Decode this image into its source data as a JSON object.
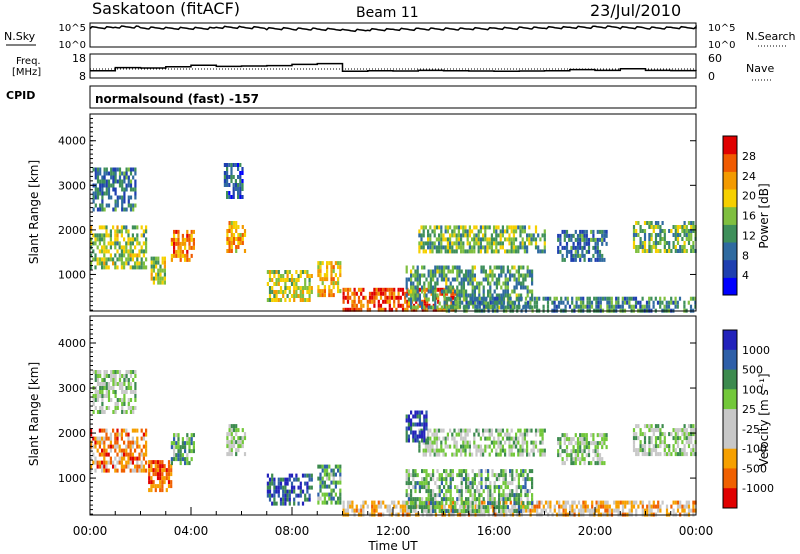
{
  "header": {
    "station": "Saskatoon (fitACF)",
    "beam": "Beam 11",
    "date": "23/Jul/2010"
  },
  "noise_panel": {
    "left_label": "N.Sky",
    "left_ticks": [
      "10^5",
      "10^0"
    ],
    "right_ticks": [
      "10^5",
      "10^0"
    ],
    "right_label": "N.Search"
  },
  "freq_panel": {
    "left_label_line1": "Freq.",
    "left_label_line2": "[MHz]",
    "left_ticks": [
      "18",
      "8"
    ],
    "right_ticks": [
      "60",
      "0"
    ],
    "right_label": "Nave"
  },
  "cpid": {
    "label": "CPID",
    "text": "normalsound (fast) -157"
  },
  "chart_data": [
    {
      "type": "line",
      "id": "noise",
      "series": [
        {
          "x": [
            0,
            1,
            2,
            3,
            4,
            5,
            6,
            7,
            8,
            9,
            10,
            11,
            12,
            13,
            14,
            15,
            16,
            17,
            18,
            19,
            20,
            21,
            22,
            23,
            24
          ],
          "values": [
            5.2,
            5.4,
            5.1,
            5.0,
            5.0,
            5.3,
            5.2,
            4.9,
            4.8,
            4.7,
            4.4,
            4.6,
            4.7,
            4.8,
            4.8,
            4.9,
            5.0,
            5.1,
            5.2,
            5.3,
            5.4,
            5.2,
            5.1,
            5.2,
            5.2
          ]
        }
      ]
    },
    {
      "type": "line",
      "id": "frequency",
      "series": [
        {
          "x": [
            0,
            1,
            2,
            3,
            4,
            5,
            6,
            7,
            8,
            9,
            10,
            11,
            12,
            13,
            14,
            15,
            16,
            17,
            18,
            19,
            20,
            21,
            22,
            23,
            24
          ],
          "values": [
            10.6,
            12.2,
            12.0,
            12.6,
            13.4,
            12.8,
            13.0,
            13.2,
            13.8,
            14.2,
            10.4,
            10.6,
            10.5,
            10.8,
            10.6,
            10.5,
            10.4,
            10.5,
            10.6,
            11.2,
            10.8,
            11.6,
            10.8,
            10.7,
            10.6
          ]
        }
      ]
    },
    {
      "type": "heatmap",
      "id": "power",
      "ylabel": "Slant Range [km]",
      "ylim": [
        180,
        4600
      ],
      "yticks": [
        "1000",
        "2000",
        "3000",
        "4000"
      ],
      "colorbar": {
        "label": "Power [dB]",
        "ticks": [
          "4",
          "8",
          "12",
          "16",
          "20",
          "24",
          "28"
        ],
        "colors": [
          "#0000ff",
          "#1e3fb0",
          "#2f6aa0",
          "#3e8f5a",
          "#7fbf3f",
          "#f6d000",
          "#f39a00",
          "#f05a00",
          "#e00000"
        ]
      },
      "patches": [
        {
          "t0": 0.1,
          "t1": 1.8,
          "r0": 2500,
          "r1": 3400,
          "level": 0.3
        },
        {
          "t0": 0.0,
          "t1": 2.2,
          "r0": 1200,
          "r1": 2100,
          "level": 0.5
        },
        {
          "t0": 2.4,
          "t1": 3.0,
          "r0": 800,
          "r1": 1400,
          "level": 0.55
        },
        {
          "t0": 3.2,
          "t1": 4.1,
          "r0": 1300,
          "r1": 2000,
          "level": 0.75
        },
        {
          "t0": 5.4,
          "t1": 6.1,
          "r0": 1500,
          "r1": 2200,
          "level": 0.7
        },
        {
          "t0": 5.3,
          "t1": 6.0,
          "r0": 2700,
          "r1": 3500,
          "level": 0.25
        },
        {
          "t0": 7.0,
          "t1": 8.8,
          "r0": 400,
          "r1": 1100,
          "level": 0.55
        },
        {
          "t0": 9.0,
          "t1": 9.9,
          "r0": 500,
          "r1": 1300,
          "level": 0.65
        },
        {
          "t0": 10.0,
          "t1": 14.5,
          "r0": 200,
          "r1": 700,
          "level": 0.85
        },
        {
          "t0": 12.5,
          "t1": 17.5,
          "r0": 300,
          "r1": 1200,
          "level": 0.4
        },
        {
          "t0": 13.0,
          "t1": 18.0,
          "r0": 1500,
          "r1": 2100,
          "level": 0.45
        },
        {
          "t0": 18.5,
          "t1": 20.5,
          "r0": 1300,
          "r1": 2000,
          "level": 0.3
        },
        {
          "t0": 21.5,
          "t1": 24.0,
          "r0": 1500,
          "r1": 2200,
          "level": 0.45
        },
        {
          "t0": 14.0,
          "t1": 24.0,
          "r0": 200,
          "r1": 500,
          "level": 0.35
        }
      ]
    },
    {
      "type": "heatmap",
      "id": "velocity",
      "ylabel": "Slant Range [km]",
      "xlabel": "Time UT",
      "ylim": [
        180,
        4600
      ],
      "yticks": [
        "1000",
        "2000",
        "3000",
        "4000"
      ],
      "xticks": [
        "00:00",
        "04:00",
        "08:00",
        "12:00",
        "16:00",
        "20:00",
        "00:00"
      ],
      "colorbar": {
        "label": "Velocity [m s⁻¹]",
        "ticks": [
          "1000",
          "500",
          "100",
          "25",
          "-25",
          "-100",
          "-500",
          "-1000"
        ],
        "colors": [
          "#2222bb",
          "#2e5fa8",
          "#3c8a4e",
          "#73c83a",
          "#c8c8c8",
          "#c8c8c8",
          "#f6a000",
          "#f06000",
          "#e00000"
        ]
      },
      "patches": [
        {
          "t0": 0.1,
          "t1": 1.8,
          "r0": 2500,
          "r1": 3400,
          "level": 0.45
        },
        {
          "t0": 0.0,
          "t1": 2.2,
          "r0": 1200,
          "r1": 2100,
          "level": 0.75
        },
        {
          "t0": 2.3,
          "t1": 3.2,
          "r0": 700,
          "r1": 1400,
          "level": 0.85
        },
        {
          "t0": 3.2,
          "t1": 4.1,
          "r0": 1300,
          "r1": 2000,
          "level": 0.3
        },
        {
          "t0": 5.4,
          "t1": 6.1,
          "r0": 1500,
          "r1": 2200,
          "level": 0.45
        },
        {
          "t0": 7.0,
          "t1": 8.8,
          "r0": 400,
          "r1": 1100,
          "level": 0.15
        },
        {
          "t0": 9.0,
          "t1": 9.9,
          "r0": 500,
          "r1": 1300,
          "level": 0.3
        },
        {
          "t0": 10.0,
          "t1": 24.0,
          "r0": 180,
          "r1": 500,
          "level": 0.65
        },
        {
          "t0": 12.5,
          "t1": 17.5,
          "r0": 300,
          "r1": 1200,
          "level": 0.35
        },
        {
          "t0": 13.0,
          "t1": 18.0,
          "r0": 1500,
          "r1": 2100,
          "level": 0.45
        },
        {
          "t0": 12.5,
          "t1": 13.3,
          "r0": 1800,
          "r1": 2500,
          "level": 0.12
        },
        {
          "t0": 18.5,
          "t1": 20.5,
          "r0": 1300,
          "r1": 2000,
          "level": 0.45
        },
        {
          "t0": 21.5,
          "t1": 24.0,
          "r0": 1500,
          "r1": 2200,
          "level": 0.45
        }
      ]
    }
  ]
}
